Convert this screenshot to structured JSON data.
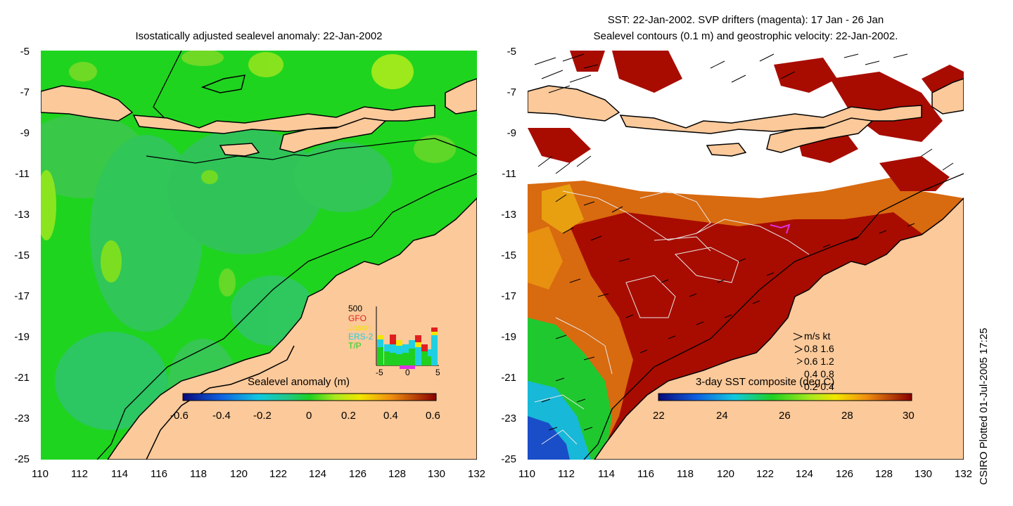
{
  "left_panel": {
    "title": "Isostatically adjusted sealevel anomaly: 22-Jan-2002",
    "colorbar_label": "Sealevel anomaly (m)",
    "colorbar_ticks": [
      "-0.6",
      "-0.4",
      "-0.2",
      "0",
      "0.2",
      "0.4",
      "0.6"
    ],
    "inset": {
      "ymax_label": "500",
      "missions": [
        {
          "name": "GFO",
          "color": "#e02020"
        },
        {
          "name": "Jason",
          "color": "#f2e600"
        },
        {
          "name": "ERS-2",
          "color": "#20d0e0"
        },
        {
          "name": "T/P",
          "color": "#20d020"
        }
      ],
      "x_ticks": [
        "-5",
        "0",
        "5"
      ]
    }
  },
  "right_panel": {
    "title_line1": "SST: 22-Jan-2002. SVP drifters (magenta): 17 Jan - 26 Jan",
    "title_line2": "Sealevel contours (0.1 m) and geostrophic velocity: 22-Jan-2002.",
    "colorbar_label": "3-day SST composite (deg C)",
    "colorbar_ticks": [
      "22",
      "24",
      "26",
      "28",
      "30"
    ],
    "velocity_legend": {
      "header": "m/s  kt",
      "rows": [
        "0.8  1.6",
        "0.6  1.2",
        "0.4  0.8",
        "0.2  0.4"
      ]
    }
  },
  "y_axis_labels": [
    "-5",
    "-7",
    "-9",
    "-11",
    "-13",
    "-15",
    "-17",
    "-19",
    "-21",
    "-23",
    "-25"
  ],
  "x_axis_labels": [
    "110",
    "112",
    "114",
    "116",
    "118",
    "120",
    "122",
    "124",
    "126",
    "128",
    "130",
    "132"
  ],
  "credit": "CSIRO Plotted 01-Jul-2005 17:25",
  "colors": {
    "land": "#fbc99a",
    "ocean_sla": "#1fd41f",
    "sst_hot": "#a80c00",
    "sst_warm": "#d86a10",
    "cloud": "#ffffff"
  }
}
